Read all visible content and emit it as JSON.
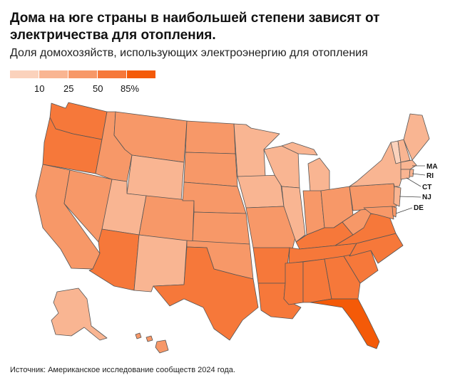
{
  "title": "Дома на юге страны в наибольшей степени зависят от электричества для отопления.",
  "subtitle": "Доля домохозяйств, использующих электроэнергию для отопления",
  "legend": {
    "colors": [
      "#fbd2bc",
      "#f9b592",
      "#f79868",
      "#f6783a",
      "#f45a08"
    ],
    "ticks": [
      "10",
      "25",
      "50",
      "85%"
    ]
  },
  "labels": {
    "ma": "MA",
    "ri": "RI",
    "ct": "CT",
    "nj": "NJ",
    "de": "DE"
  },
  "source": "Источник: Американское исследование сообществ 2024 года."
}
